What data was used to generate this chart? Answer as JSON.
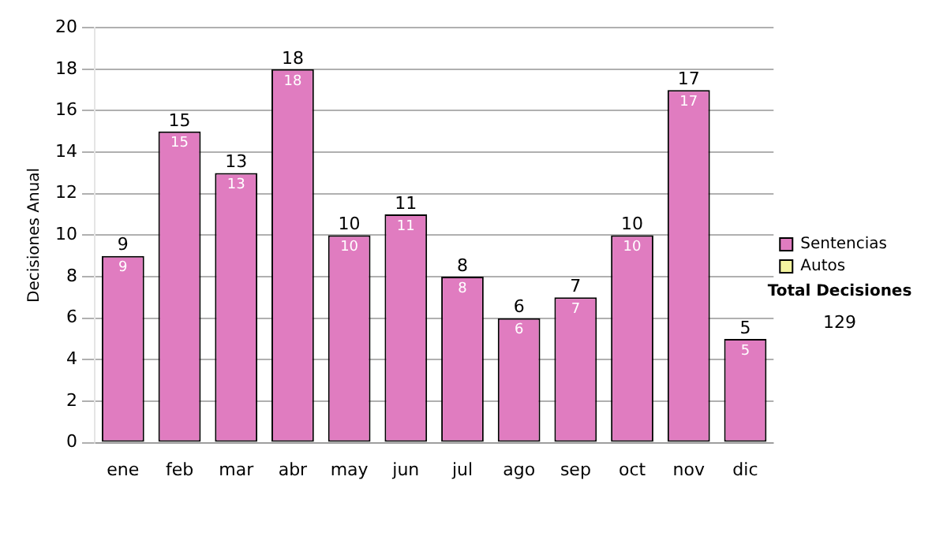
{
  "chart_data": {
    "type": "bar",
    "ylabel": "Decisiones Anual",
    "categories": [
      "ene",
      "feb",
      "mar",
      "abr",
      "may",
      "jun",
      "jul",
      "ago",
      "sep",
      "oct",
      "nov",
      "dic"
    ],
    "series": [
      {
        "name": "Sentencias",
        "color": "#e07cc0",
        "values": [
          9,
          15,
          13,
          18,
          10,
          11,
          8,
          6,
          7,
          10,
          17,
          5
        ],
        "value_labels": [
          "9",
          "15",
          "13",
          "18",
          "10",
          "11",
          "8",
          "6",
          "7",
          "10",
          "17",
          "5"
        ]
      },
      {
        "name": "Autos",
        "color": "#f4f4a0",
        "values": [
          0,
          0,
          0,
          0,
          0,
          0,
          0,
          0,
          0,
          0,
          0,
          0
        ]
      }
    ],
    "stacked": true,
    "totals": [
      "9",
      "15",
      "13",
      "18",
      "10",
      "11",
      "8",
      "6",
      "7",
      "10",
      "17",
      "5"
    ],
    "ylim": [
      0,
      20
    ],
    "yticks": [
      0,
      2,
      4,
      6,
      8,
      10,
      12,
      14,
      16,
      18,
      20
    ],
    "grid": "y",
    "legend": "right",
    "annotations": [
      "Total Decisiones",
      "129"
    ]
  }
}
